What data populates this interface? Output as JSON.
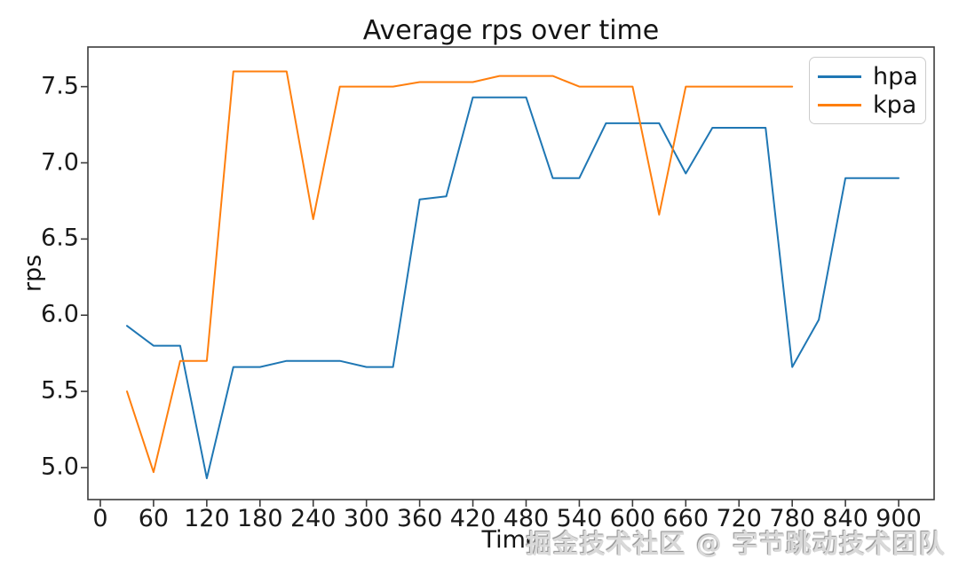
{
  "chart_data": {
    "type": "line",
    "title": "Average rps over time",
    "xlabel": "Time",
    "ylabel": "rps",
    "grid": false,
    "legend_position": "upper right",
    "x": [
      30,
      60,
      90,
      120,
      150,
      180,
      210,
      240,
      270,
      300,
      330,
      360,
      390,
      420,
      450,
      480,
      510,
      540,
      570,
      600,
      630,
      660,
      690,
      720,
      750,
      780,
      810,
      840,
      870,
      900
    ],
    "series": [
      {
        "name": "hpa",
        "color": "#1f77b4",
        "values": [
          5.93,
          5.8,
          5.8,
          4.93,
          5.66,
          5.66,
          5.7,
          5.7,
          5.7,
          5.66,
          5.66,
          6.76,
          6.78,
          7.43,
          7.43,
          7.43,
          6.9,
          6.9,
          7.26,
          7.26,
          7.26,
          6.93,
          7.23,
          7.23,
          7.23,
          5.66,
          5.97,
          6.9,
          6.9,
          6.9
        ]
      },
      {
        "name": "kpa",
        "color": "#ff7f0e",
        "values": [
          5.5,
          4.97,
          5.7,
          5.7,
          7.6,
          7.6,
          7.6,
          6.63,
          7.5,
          7.5,
          7.5,
          7.53,
          7.53,
          7.53,
          7.57,
          7.57,
          7.57,
          7.5,
          7.5,
          7.5,
          6.66,
          7.5,
          7.5,
          7.5,
          7.5,
          7.5
        ]
      }
    ],
    "xticks": [
      0,
      60,
      120,
      180,
      240,
      300,
      360,
      420,
      480,
      540,
      600,
      660,
      720,
      780,
      840,
      900
    ],
    "ytick_labels": [
      "5.0",
      "5.5",
      "6.0",
      "6.5",
      "7.0",
      "7.5"
    ],
    "xlim": [
      -14,
      940
    ],
    "ylim": [
      4.79,
      7.76
    ],
    "axis_color": "#3c3c3c"
  },
  "watermark": {
    "text": "掘金技术社区 @ 字节跳动技术团队"
  }
}
